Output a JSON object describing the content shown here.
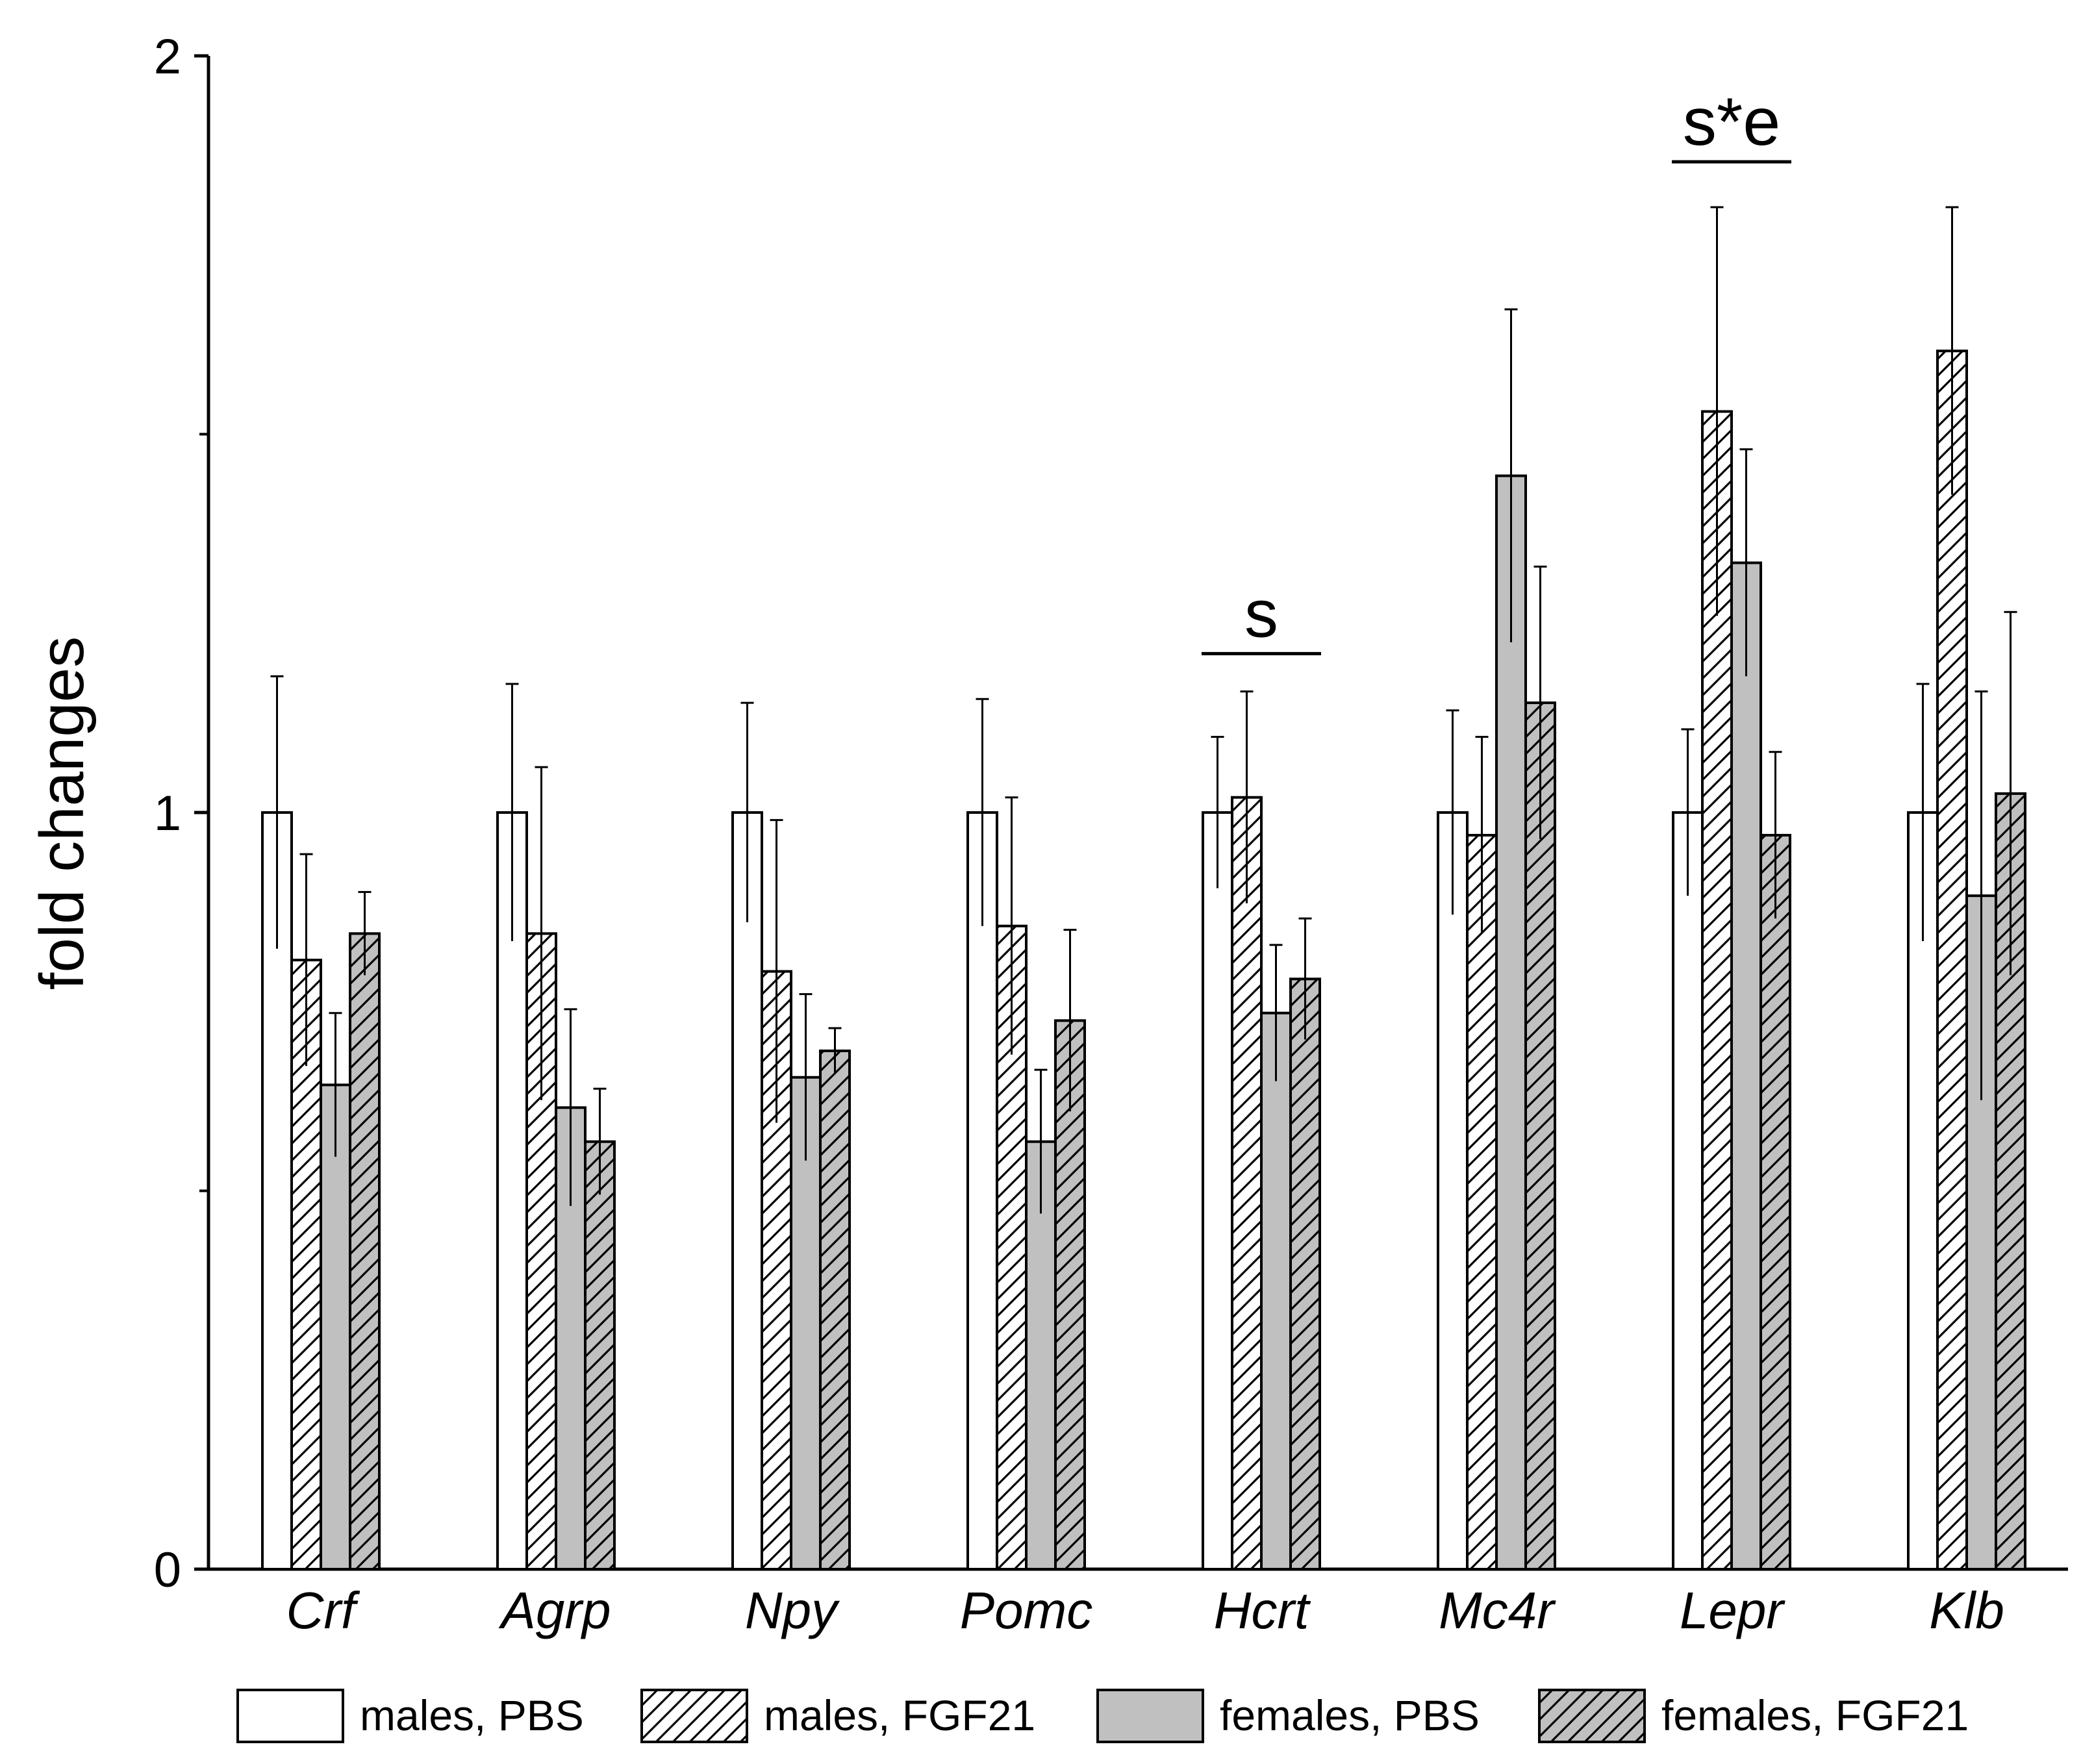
{
  "chart_data": {
    "type": "bar",
    "title": "",
    "xlabel": "",
    "ylabel": "fold changes",
    "ylim": [
      0,
      2
    ],
    "yticks": [
      0,
      1,
      2
    ],
    "y_minor_ticks": [
      0.5,
      1.5
    ],
    "categories": [
      "Crf",
      "Agrp",
      "Npy",
      "Pomc",
      "Hcrt",
      "Mc4r",
      "Lepr",
      "Klb"
    ],
    "series": [
      {
        "name": "males, PBS",
        "pattern": "open",
        "values": [
          1.0,
          1.0,
          1.0,
          1.0,
          1.0,
          1.0,
          1.0,
          1.0
        ],
        "errors": [
          0.18,
          0.17,
          0.145,
          0.15,
          0.1,
          0.135,
          0.11,
          0.17
        ]
      },
      {
        "name": "males, FGF21",
        "pattern": "hatched",
        "values": [
          0.805,
          0.84,
          0.79,
          0.85,
          1.02,
          0.97,
          1.53,
          1.61
        ],
        "errors": [
          0.14,
          0.22,
          0.2,
          0.17,
          0.14,
          0.13,
          0.27,
          0.19
        ]
      },
      {
        "name": "females, PBS",
        "pattern": "grey",
        "values": [
          0.64,
          0.61,
          0.65,
          0.565,
          0.735,
          1.445,
          1.33,
          0.89
        ],
        "errors": [
          0.095,
          0.13,
          0.11,
          0.095,
          0.09,
          0.22,
          0.15,
          0.27
        ]
      },
      {
        "name": "females, FGF21",
        "pattern": "grey-hatched",
        "values": [
          0.84,
          0.565,
          0.685,
          0.725,
          0.78,
          1.145,
          0.97,
          1.025
        ],
        "errors": [
          0.055,
          0.07,
          0.03,
          0.12,
          0.08,
          0.18,
          0.11,
          0.24
        ]
      }
    ],
    "annotations": [
      {
        "text": "s",
        "category": "Hcrt",
        "y": 1.21
      },
      {
        "text": "s*e",
        "category": "Lepr",
        "y": 1.86
      }
    ],
    "legend_position": "bottom",
    "colors": {
      "axis": "#000000",
      "open_fill": "#ffffff",
      "grey_fill": "#c0c0c0",
      "hatch": "#000000"
    }
  }
}
